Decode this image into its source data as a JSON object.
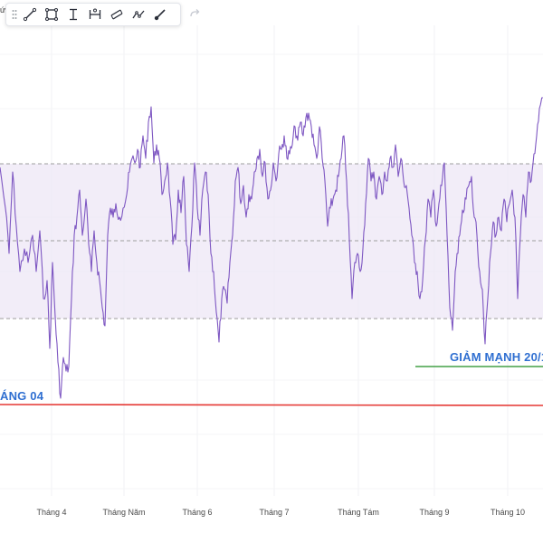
{
  "top_fragment": "ức",
  "toolbar": {
    "tools": [
      {
        "name": "trend-line",
        "icon": "trend-line-icon"
      },
      {
        "name": "rectangle",
        "icon": "rectangle-icon"
      },
      {
        "name": "price-range",
        "icon": "price-range-icon"
      },
      {
        "name": "date-range",
        "icon": "date-range-icon"
      },
      {
        "name": "parallel-channel",
        "icon": "parallel-channel-icon"
      },
      {
        "name": "path",
        "icon": "path-icon"
      },
      {
        "name": "brush",
        "icon": "brush-icon"
      }
    ],
    "redo_icon": "redo-icon"
  },
  "annotations": {
    "green_text": "GIẢM MẠNH 20/1",
    "red_text": "ÁNG 04"
  },
  "colors": {
    "line": "#7e57c2",
    "band_fill": "#ede7f6",
    "band_dash": "#9e9e9e",
    "green_line": "#43a047",
    "red_line": "#e53935",
    "annotation_text": "#2f6fd1"
  },
  "chart_data": {
    "type": "line",
    "x_ticks": [
      "Tháng 4",
      "Tháng Năm",
      "Tháng 6",
      "Tháng 7",
      "Tháng Tám",
      "Tháng 9",
      "Tháng 10"
    ],
    "band_levels": [
      "upper",
      "middle",
      "lower"
    ],
    "reference_lines": [
      "green",
      "red"
    ]
  }
}
